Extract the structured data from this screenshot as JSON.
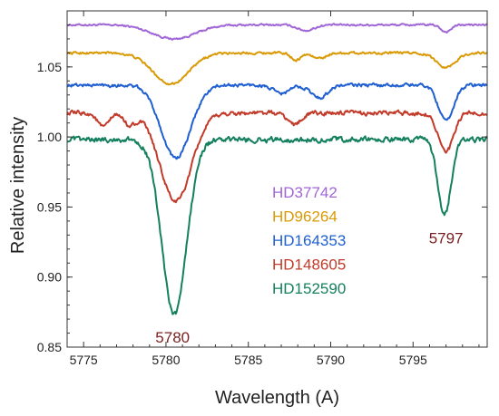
{
  "chart_data": {
    "type": "line",
    "xlabel": "Wavelength (A)",
    "ylabel": "Relative intensity",
    "xlim": [
      5774,
      5799.5
    ],
    "ylim": [
      0.85,
      1.09
    ],
    "x_ticks": [
      5775,
      5780,
      5785,
      5790,
      5795
    ],
    "x_tick_labels": [
      "5775",
      "5780",
      "5785",
      "5790",
      "5795"
    ],
    "y_ticks": [
      0.85,
      0.9,
      0.95,
      1.0,
      1.05
    ],
    "y_tick_labels": [
      "0.85",
      "0.90",
      "0.95",
      "1.00",
      "1.05"
    ],
    "grid": false,
    "legend_position": "center-right",
    "annotations": [
      {
        "text": "5780",
        "x": 5780.4,
        "y": 0.857
      },
      {
        "text": "5797",
        "x": 5797.0,
        "y": 0.928
      }
    ],
    "series": [
      {
        "name": "HD37742",
        "color": "#a066d6",
        "baseline": 1.08,
        "noise": 0.0012,
        "bands": [
          {
            "center": 5780.5,
            "depth": 0.01,
            "width": 1.3
          },
          {
            "center": 5788.5,
            "depth": 0.004,
            "width": 0.5
          },
          {
            "center": 5797.0,
            "depth": 0.005,
            "width": 0.3
          }
        ]
      },
      {
        "name": "HD96264",
        "color": "#d99a06",
        "baseline": 1.06,
        "noise": 0.0015,
        "bands": [
          {
            "center": 5780.3,
            "depth": 0.022,
            "width": 1.1
          },
          {
            "center": 5787.9,
            "depth": 0.005,
            "width": 0.3
          },
          {
            "center": 5789.3,
            "depth": 0.004,
            "width": 0.4
          },
          {
            "center": 5797.0,
            "depth": 0.01,
            "width": 0.6
          }
        ]
      },
      {
        "name": "HD164353",
        "color": "#1f5fd1",
        "baseline": 1.037,
        "noise": 0.0022,
        "bands": [
          {
            "center": 5780.6,
            "depth": 0.052,
            "width": 0.9
          },
          {
            "center": 5787.0,
            "depth": 0.006,
            "width": 0.5
          },
          {
            "center": 5789.3,
            "depth": 0.009,
            "width": 0.5
          },
          {
            "center": 5797.0,
            "depth": 0.026,
            "width": 0.45
          }
        ]
      },
      {
        "name": "HD148605",
        "color": "#c23b2a",
        "baseline": 1.017,
        "noise": 0.0028,
        "bands": [
          {
            "center": 5776.2,
            "depth": 0.01,
            "width": 0.35
          },
          {
            "center": 5777.8,
            "depth": 0.008,
            "width": 0.35
          },
          {
            "center": 5780.6,
            "depth": 0.063,
            "width": 0.95
          },
          {
            "center": 5787.8,
            "depth": 0.008,
            "width": 0.4
          },
          {
            "center": 5797.0,
            "depth": 0.028,
            "width": 0.45
          }
        ]
      },
      {
        "name": "HD152590",
        "color": "#14805e",
        "baseline": 0.998,
        "noise": 0.0035,
        "bands": [
          {
            "center": 5780.5,
            "depth": 0.125,
            "width": 0.75
          },
          {
            "center": 5796.9,
            "depth": 0.054,
            "width": 0.4
          }
        ]
      }
    ]
  }
}
